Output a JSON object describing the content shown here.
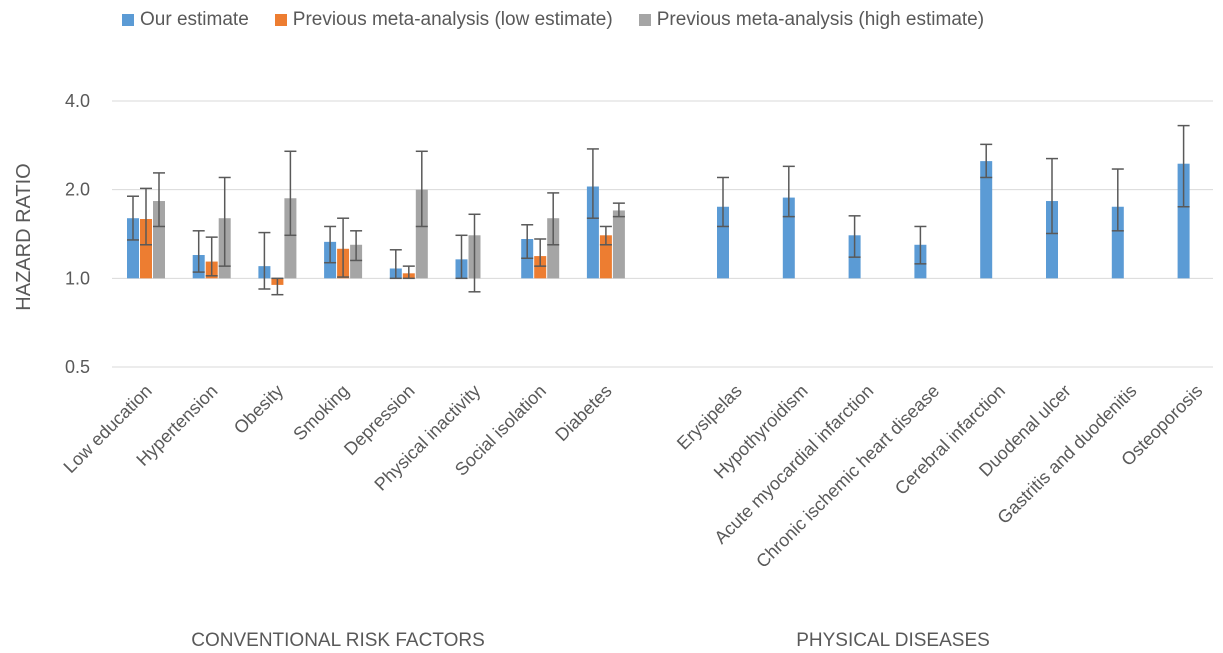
{
  "chart_data": {
    "type": "bar",
    "ylabel": "HAZARD RATIO",
    "yscale": "log",
    "ylim": [
      0.5,
      4.0
    ],
    "yticks": [
      "0.5",
      "1.0",
      "2.0",
      "4.0"
    ],
    "yticks_values": [
      0.5,
      1.0,
      2.0,
      4.0
    ],
    "grid": true,
    "legend_position": "top-left",
    "groups": [
      {
        "label": "CONVENTIONAL RISK FACTORS",
        "categories": [
          "Low education",
          "Hypertension",
          "Obesity",
          "Smoking",
          "Depression",
          "Physical inactivity",
          "Social isolation",
          "Diabetes"
        ]
      },
      {
        "label": "PHYSICAL DISEASES",
        "categories": [
          "Erysipelas",
          "Hypothyroidism",
          "Acute myocardial infarction",
          "Chronic ischemic heart disease",
          "Cerebral infarction",
          "Duodenal ulcer",
          "Gastritis and duodenitis",
          "Osteoporosis"
        ]
      }
    ],
    "categories": [
      "Low education",
      "Hypertension",
      "Obesity",
      "Smoking",
      "Depression",
      "Physical inactivity",
      "Social isolation",
      "Diabetes",
      "Erysipelas",
      "Hypothyroidism",
      "Acute myocardial infarction",
      "Chronic ischemic heart disease",
      "Cerebral infarction",
      "Duodenal ulcer",
      "Gastritis and duodenitis",
      "Osteoporosis"
    ],
    "series": [
      {
        "name": "Our estimate",
        "color": "#5B9BD5",
        "values": [
          1.6,
          1.2,
          1.1,
          1.33,
          1.08,
          1.16,
          1.36,
          2.05,
          1.75,
          1.88,
          1.4,
          1.3,
          2.5,
          1.83,
          1.75,
          2.45
        ],
        "err_low": [
          1.35,
          1.05,
          0.92,
          1.13,
          1.0,
          1.0,
          1.17,
          1.6,
          1.5,
          1.62,
          1.18,
          1.12,
          2.2,
          1.42,
          1.45,
          1.75
        ],
        "err_high": [
          1.9,
          1.45,
          1.43,
          1.5,
          1.25,
          1.4,
          1.52,
          2.75,
          2.2,
          2.4,
          1.63,
          1.5,
          2.85,
          2.55,
          2.35,
          3.3
        ]
      },
      {
        "name": "Previous meta-analysis (low estimate)",
        "color": "#ED7D31",
        "values": [
          1.59,
          1.14,
          0.95,
          1.26,
          1.04,
          null,
          1.19,
          1.4,
          null,
          null,
          null,
          null,
          null,
          null,
          null,
          null
        ],
        "err_low": [
          1.3,
          1.02,
          0.88,
          1.01,
          1.0,
          null,
          1.1,
          1.3,
          null,
          null,
          null,
          null,
          null,
          null,
          null,
          null
        ],
        "err_high": [
          2.02,
          1.38,
          1.0,
          1.6,
          1.1,
          null,
          1.36,
          1.5,
          null,
          null,
          null,
          null,
          null,
          null,
          null,
          null
        ]
      },
      {
        "name": "Previous meta-analysis (high estimate)",
        "color": "#A5A5A5",
        "values": [
          1.83,
          1.6,
          1.87,
          1.3,
          2.0,
          1.4,
          1.6,
          1.7,
          null,
          null,
          null,
          null,
          null,
          null,
          null,
          null
        ],
        "err_low": [
          1.5,
          1.1,
          1.4,
          1.15,
          1.5,
          0.9,
          1.3,
          1.62,
          null,
          null,
          null,
          null,
          null,
          null,
          null,
          null
        ],
        "err_high": [
          2.28,
          2.2,
          2.7,
          1.45,
          2.7,
          1.65,
          1.95,
          1.8,
          null,
          null,
          null,
          null,
          null,
          null,
          null,
          null
        ]
      }
    ]
  }
}
